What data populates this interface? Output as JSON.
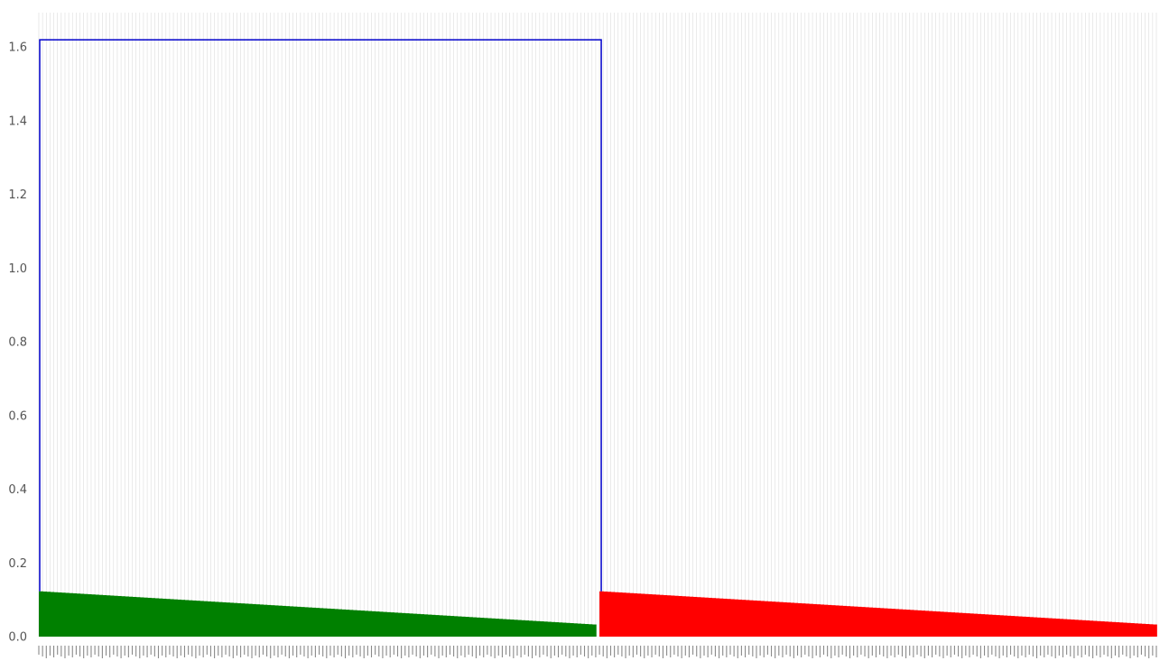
{
  "chart_data": {
    "type": "dendrogram",
    "title": "",
    "xlabel": "",
    "ylabel": "",
    "ylim": [
      0,
      1.69
    ],
    "yticks": [
      0.0,
      0.2,
      0.4,
      0.6,
      0.8,
      1.0,
      1.2,
      1.4,
      1.6
    ],
    "ytick_labels": [
      "0.0",
      "0.2",
      "0.4",
      "0.6",
      "0.8",
      "1.0",
      "1.2",
      "1.4",
      "1.6"
    ],
    "grid": "vertical lines at each leaf",
    "leaf_count": 300,
    "root_merge_height": 1.62,
    "clusters": [
      {
        "color": "#008000",
        "leaves": 150,
        "max_merge_height": 0.123,
        "min_merge_height": 0.033
      },
      {
        "color": "#ff0000",
        "leaves": 150,
        "max_merge_height": 0.123,
        "min_merge_height": 0.033
      }
    ],
    "root_color": "#0000cc",
    "leaf_label_color": "#666666"
  }
}
